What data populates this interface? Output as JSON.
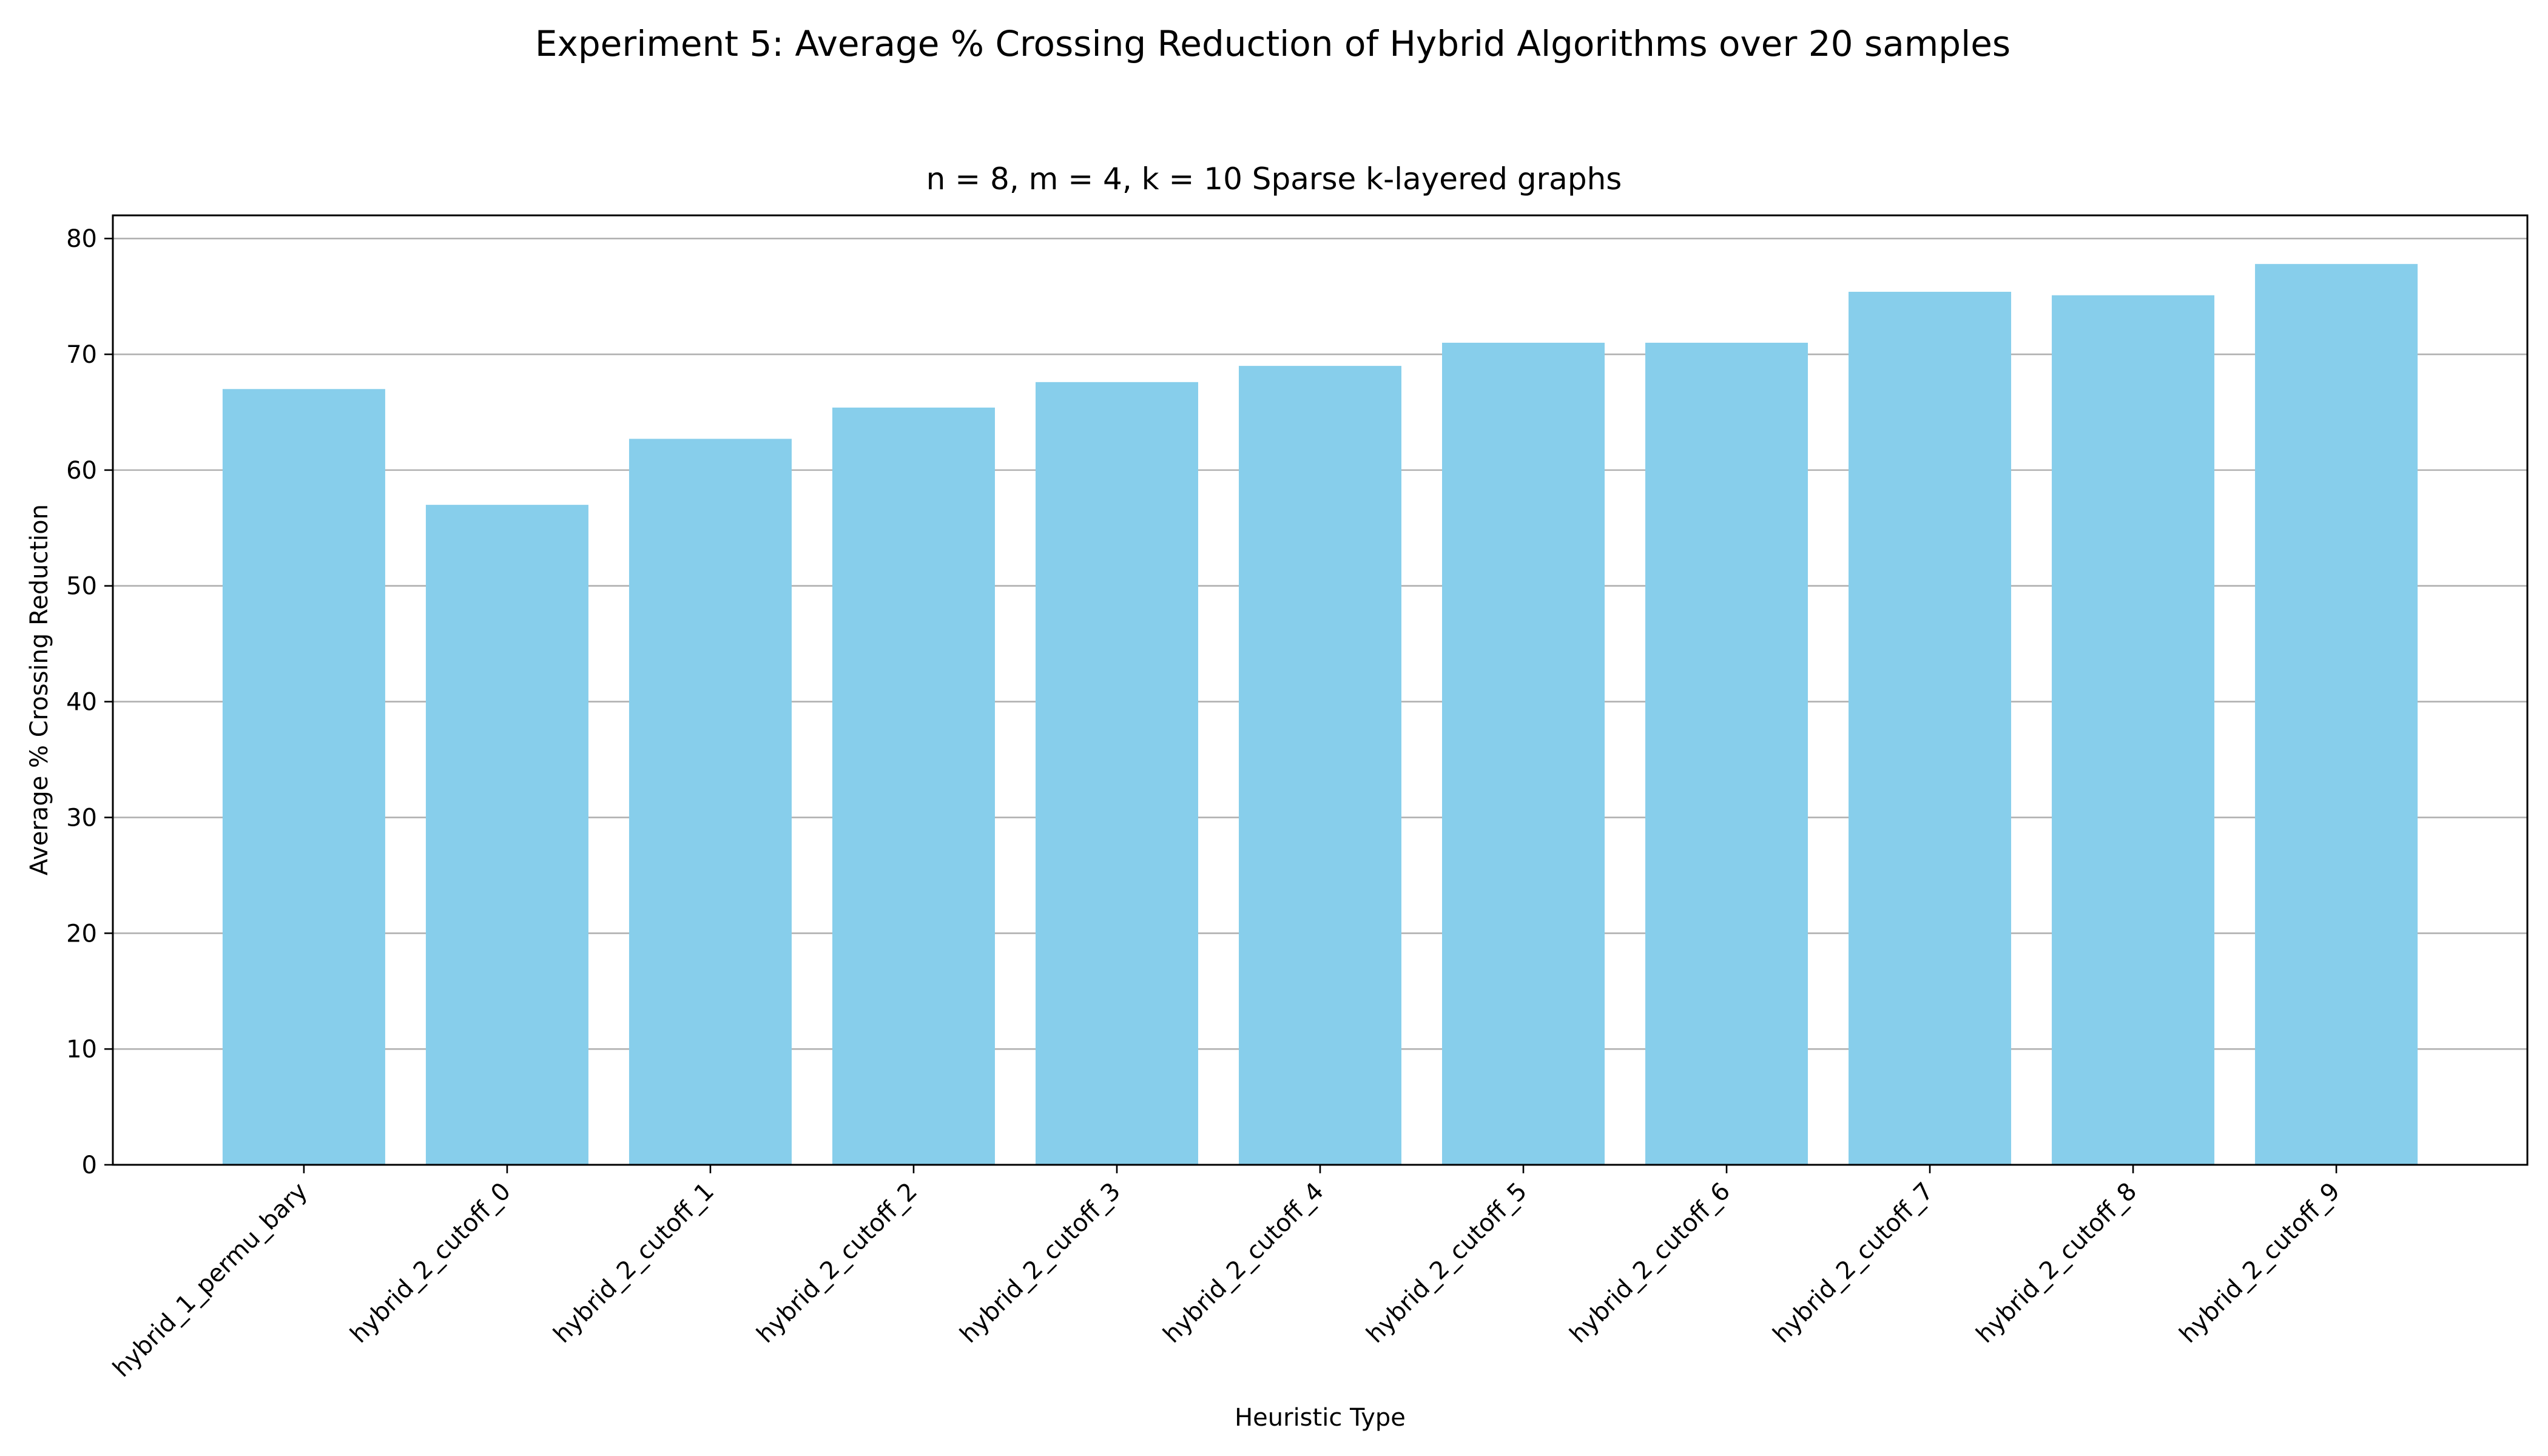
{
  "colors": {
    "bar": "#87ceeb",
    "grid": "#b0b0b0",
    "axis": "#000000",
    "background": "#ffffff"
  },
  "chart_data": {
    "type": "bar",
    "suptitle": "Experiment 5: Average % Crossing Reduction of Hybrid Algorithms over 20 samples",
    "title": "n = 8, m = 4, k = 10 Sparse k-layered graphs",
    "xlabel": "Heuristic Type",
    "ylabel": "Average % Crossing Reduction",
    "categories": [
      "hybrid_1_permu_bary",
      "hybrid_2_cutoff_0",
      "hybrid_2_cutoff_1",
      "hybrid_2_cutoff_2",
      "hybrid_2_cutoff_3",
      "hybrid_2_cutoff_4",
      "hybrid_2_cutoff_5",
      "hybrid_2_cutoff_6",
      "hybrid_2_cutoff_7",
      "hybrid_2_cutoff_8",
      "hybrid_2_cutoff_9"
    ],
    "values": [
      67.0,
      57.0,
      62.7,
      65.4,
      67.6,
      69.0,
      71.0,
      71.0,
      75.4,
      75.1,
      77.8
    ],
    "ylim": [
      0,
      82
    ],
    "yticks": [
      0,
      10,
      20,
      30,
      40,
      50,
      60,
      70,
      80
    ],
    "grid": "y-axis",
    "legend": "none"
  }
}
